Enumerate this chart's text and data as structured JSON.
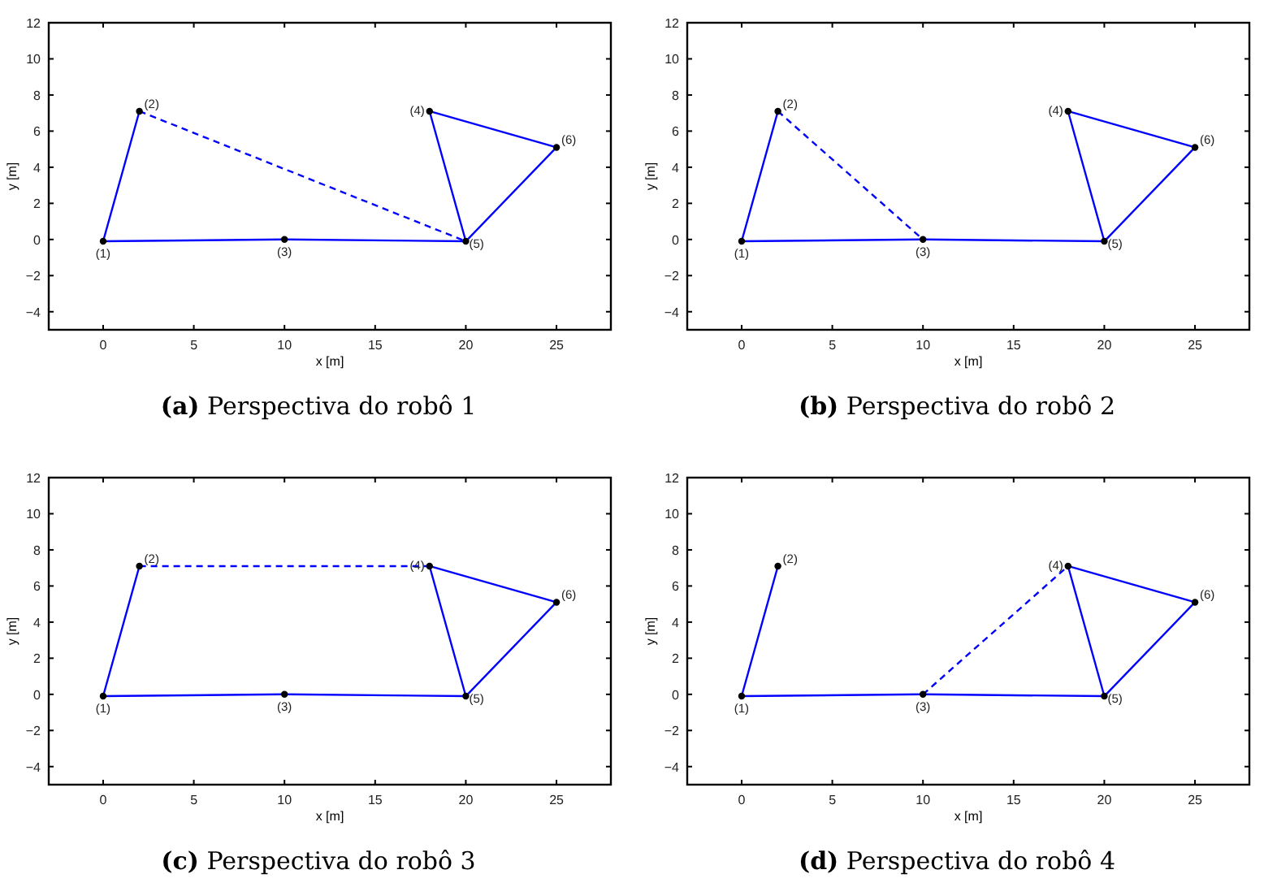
{
  "chart_data": [
    {
      "type": "line",
      "title": "(a) Perspectiva do robô 1",
      "xlabel": "x [m]",
      "ylabel": "y [m]",
      "xlim": [
        -3,
        28
      ],
      "ylim": [
        -5,
        12
      ],
      "xticks": [
        0,
        5,
        10,
        15,
        20,
        25
      ],
      "yticks": [
        -4,
        -2,
        0,
        2,
        4,
        6,
        8,
        10,
        12
      ],
      "grid": false,
      "series": [
        {
          "color": "#0000ff",
          "line_style": "solid",
          "x": [
            2,
            0,
            10,
            20,
            18,
            25,
            20
          ],
          "values": [
            7.1,
            -0.1,
            0,
            -0.1,
            7.1,
            5.1,
            -0.1
          ]
        },
        {
          "color": "#0000ff",
          "line_style": "dashed",
          "x": [
            2,
            20
          ],
          "values": [
            7.1,
            -0.1
          ]
        },
        {
          "type": "scatter",
          "color": "#000000",
          "marker": "circle",
          "x": [
            0,
            2,
            10,
            18,
            20,
            25
          ],
          "values": [
            -0.1,
            7.1,
            0,
            7.1,
            -0.1,
            5.1
          ]
        }
      ],
      "annotations": [
        {
          "text": "(1)",
          "x": 0,
          "y": -0.1
        },
        {
          "text": "(2)",
          "x": 2,
          "y": 7.1
        },
        {
          "text": "(3)",
          "x": 10,
          "y": 0
        },
        {
          "text": "(4)",
          "x": 18,
          "y": 7.1
        },
        {
          "text": "(5)",
          "x": 20,
          "y": -0.1
        },
        {
          "text": "(6)",
          "x": 25,
          "y": 5.1
        }
      ]
    },
    {
      "type": "line",
      "title": "(b) Perspectiva do robô 2",
      "xlabel": "x [m]",
      "ylabel": "y [m]",
      "xlim": [
        -3,
        28
      ],
      "ylim": [
        -5,
        12
      ],
      "xticks": [
        0,
        5,
        10,
        15,
        20,
        25
      ],
      "yticks": [
        -4,
        -2,
        0,
        2,
        4,
        6,
        8,
        10,
        12
      ],
      "grid": false,
      "series": [
        {
          "color": "#0000ff",
          "line_style": "solid",
          "x": [
            2,
            0,
            10,
            20,
            18,
            25,
            20
          ],
          "values": [
            7.1,
            -0.1,
            0,
            -0.1,
            7.1,
            5.1,
            -0.1
          ]
        },
        {
          "color": "#0000ff",
          "line_style": "dashed",
          "x": [
            2,
            10
          ],
          "values": [
            7.1,
            0
          ]
        },
        {
          "type": "scatter",
          "color": "#000000",
          "marker": "circle",
          "x": [
            0,
            2,
            10,
            18,
            20,
            25
          ],
          "values": [
            -0.1,
            7.1,
            0,
            7.1,
            -0.1,
            5.1
          ]
        }
      ],
      "annotations": [
        {
          "text": "(1)",
          "x": 0,
          "y": -0.1
        },
        {
          "text": "(2)",
          "x": 2,
          "y": 7.1
        },
        {
          "text": "(3)",
          "x": 10,
          "y": 0
        },
        {
          "text": "(4)",
          "x": 18,
          "y": 7.1
        },
        {
          "text": "(5)",
          "x": 20,
          "y": -0.1
        },
        {
          "text": "(6)",
          "x": 25,
          "y": 5.1
        }
      ]
    },
    {
      "type": "line",
      "title": "(c) Perspectiva do robô 3",
      "xlabel": "x [m]",
      "ylabel": "y [m]",
      "xlim": [
        -3,
        28
      ],
      "ylim": [
        -5,
        12
      ],
      "xticks": [
        0,
        5,
        10,
        15,
        20,
        25
      ],
      "yticks": [
        -4,
        -2,
        0,
        2,
        4,
        6,
        8,
        10,
        12
      ],
      "grid": false,
      "series": [
        {
          "color": "#0000ff",
          "line_style": "solid",
          "x": [
            2,
            0,
            10,
            20,
            18,
            25,
            20
          ],
          "values": [
            7.1,
            -0.1,
            0,
            -0.1,
            7.1,
            5.1,
            -0.1
          ]
        },
        {
          "color": "#0000ff",
          "line_style": "dashed",
          "x": [
            2,
            18
          ],
          "values": [
            7.1,
            7.1
          ]
        },
        {
          "type": "scatter",
          "color": "#000000",
          "marker": "circle",
          "x": [
            0,
            2,
            10,
            18,
            20,
            25
          ],
          "values": [
            -0.1,
            7.1,
            0,
            7.1,
            -0.1,
            5.1
          ]
        }
      ],
      "annotations": [
        {
          "text": "(1)",
          "x": 0,
          "y": -0.1
        },
        {
          "text": "(2)",
          "x": 2,
          "y": 7.1
        },
        {
          "text": "(3)",
          "x": 10,
          "y": 0
        },
        {
          "text": "(4)",
          "x": 18,
          "y": 7.1
        },
        {
          "text": "(5)",
          "x": 20,
          "y": -0.1
        },
        {
          "text": "(6)",
          "x": 25,
          "y": 5.1
        }
      ]
    },
    {
      "type": "line",
      "title": "(d) Perspectiva do robô 4",
      "xlabel": "x [m]",
      "ylabel": "y [m]",
      "xlim": [
        -3,
        28
      ],
      "ylim": [
        -5,
        12
      ],
      "xticks": [
        0,
        5,
        10,
        15,
        20,
        25
      ],
      "yticks": [
        -4,
        -2,
        0,
        2,
        4,
        6,
        8,
        10,
        12
      ],
      "grid": false,
      "series": [
        {
          "color": "#0000ff",
          "line_style": "solid",
          "x": [
            2,
            0,
            10,
            20,
            18,
            25,
            20
          ],
          "values": [
            7.1,
            -0.1,
            0,
            -0.1,
            7.1,
            5.1,
            -0.1
          ]
        },
        {
          "color": "#0000ff",
          "line_style": "dashed",
          "x": [
            10,
            18
          ],
          "values": [
            0,
            7.1
          ]
        },
        {
          "type": "scatter",
          "color": "#000000",
          "marker": "circle",
          "x": [
            0,
            2,
            10,
            18,
            20,
            25
          ],
          "values": [
            -0.1,
            7.1,
            0,
            7.1,
            -0.1,
            5.1
          ]
        }
      ],
      "annotations": [
        {
          "text": "(1)",
          "x": 0,
          "y": -0.1
        },
        {
          "text": "(2)",
          "x": 2,
          "y": 7.1
        },
        {
          "text": "(3)",
          "x": 10,
          "y": 0
        },
        {
          "text": "(4)",
          "x": 18,
          "y": 7.1
        },
        {
          "text": "(5)",
          "x": 20,
          "y": -0.1
        },
        {
          "text": "(6)",
          "x": 25,
          "y": 5.1
        }
      ]
    }
  ]
}
